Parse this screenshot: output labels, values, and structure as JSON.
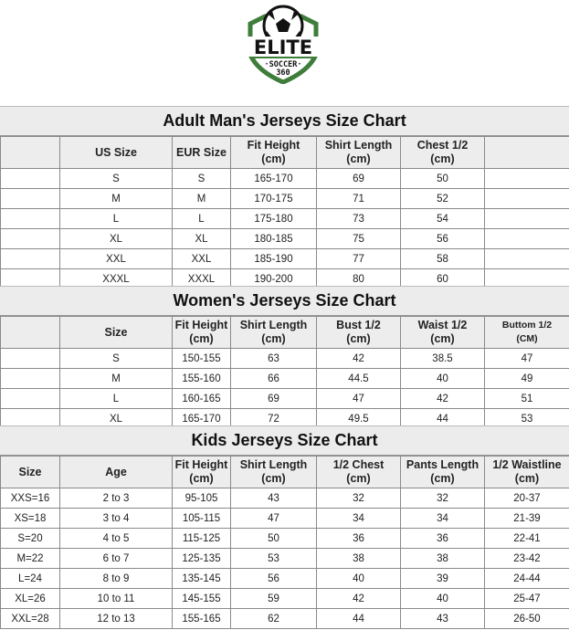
{
  "logo": {
    "text": "ELITE",
    "subtext": "SOCCER",
    "number": "360",
    "brand_color": "#3f7d3a"
  },
  "adult": {
    "title": "Adult Man's Jerseys Size Chart",
    "headers": [
      "",
      "US Size",
      "EUR Size",
      "Fit Height\n(cm)",
      "Shirt Length\n(cm)",
      "Chest 1/2\n(cm)",
      ""
    ],
    "rows": [
      [
        "",
        "S",
        "S",
        "165-170",
        "69",
        "50",
        ""
      ],
      [
        "",
        "M",
        "M",
        "170-175",
        "71",
        "52",
        ""
      ],
      [
        "",
        "L",
        "L",
        "175-180",
        "73",
        "54",
        ""
      ],
      [
        "",
        "XL",
        "XL",
        "180-185",
        "75",
        "56",
        ""
      ],
      [
        "",
        "XXL",
        "XXL",
        "185-190",
        "77",
        "58",
        ""
      ],
      [
        "",
        "XXXL",
        "XXXL",
        "190-200",
        "80",
        "60",
        ""
      ]
    ]
  },
  "women": {
    "title": "Women's Jerseys Size Chart",
    "headers": [
      "",
      "Size",
      "Fit Height\n(cm)",
      "Shirt Length\n(cm)",
      "Bust 1/2\n(cm)",
      "Waist 1/2\n(cm)",
      "Buttom 1/2\n(CM)"
    ],
    "rows": [
      [
        "",
        "S",
        "150-155",
        "63",
        "42",
        "38.5",
        "47"
      ],
      [
        "",
        "M",
        "155-160",
        "66",
        "44.5",
        "40",
        "49"
      ],
      [
        "",
        "L",
        "160-165",
        "69",
        "47",
        "42",
        "51"
      ],
      [
        "",
        "XL",
        "165-170",
        "72",
        "49.5",
        "44",
        "53"
      ]
    ]
  },
  "kids": {
    "title": "Kids Jerseys Size Chart",
    "headers": [
      "Size",
      "Age",
      "Fit Height\n(cm)",
      "Shirt Length\n(cm)",
      "1/2 Chest\n(cm)",
      "Pants Length\n(cm)",
      "1/2 Waistline\n(cm)"
    ],
    "rows": [
      [
        "XXS=16",
        "2 to 3",
        "95-105",
        "43",
        "32",
        "32",
        "20-37"
      ],
      [
        "XS=18",
        "3 to 4",
        "105-115",
        "47",
        "34",
        "34",
        "21-39"
      ],
      [
        "S=20",
        "4 to 5",
        "115-125",
        "50",
        "36",
        "36",
        "22-41"
      ],
      [
        "M=22",
        "6 to 7",
        "125-135",
        "53",
        "38",
        "38",
        "23-42"
      ],
      [
        "L=24",
        "8 to 9",
        "135-145",
        "56",
        "40",
        "39",
        "24-44"
      ],
      [
        "XL=26",
        "10 to 11",
        "145-155",
        "59",
        "42",
        "40",
        "25-47"
      ],
      [
        "XXL=28",
        "12 to 13",
        "155-165",
        "62",
        "44",
        "43",
        "26-50"
      ]
    ]
  }
}
